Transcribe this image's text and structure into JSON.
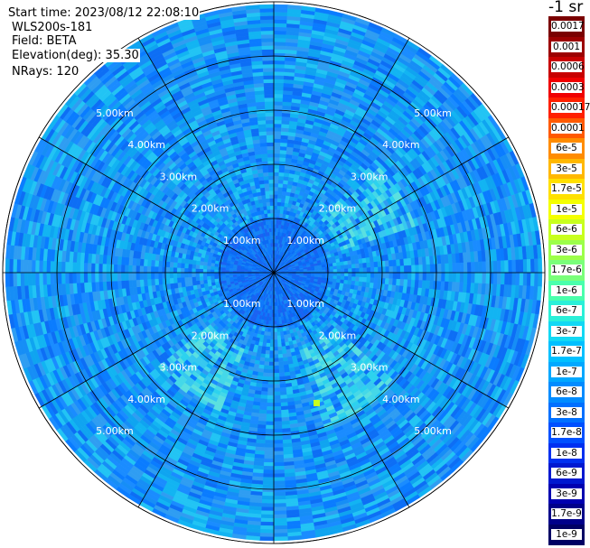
{
  "header": {
    "start_time": "Start time: 2023/08/12 22:08:10",
    "instrument": "WLS200s-181",
    "field": "Field: BETA",
    "elevation": "Elevation(deg): 35.30",
    "nrays": "NRays: 120"
  },
  "colorbar": {
    "unit_title": "-1 sr",
    "labels": [
      "0.0017",
      "0.001",
      "0.0006",
      "0.0003",
      "0.00017",
      "0.0001",
      "6e-5",
      "3e-5",
      "1.7e-5",
      "1e-5",
      "6e-6",
      "3e-6",
      "1.7e-6",
      "1e-6",
      "6e-7",
      "3e-7",
      "1.7e-7",
      "1e-7",
      "6e-8",
      "3e-8",
      "1.7e-8",
      "1e-8",
      "6e-9",
      "3e-9",
      "1.7e-9",
      "1e-9"
    ],
    "colors": [
      "#7a0000",
      "#9c0000",
      "#c80000",
      "#f00000",
      "#ff2000",
      "#ff5a00",
      "#ff8c00",
      "#ffb800",
      "#ffe000",
      "#f4ff00",
      "#c8ff1e",
      "#9cff4a",
      "#7aff7a",
      "#4affac",
      "#2af0d8",
      "#12d8f4",
      "#00c0ff",
      "#00a8ff",
      "#008cff",
      "#0070ff",
      "#0050ff",
      "#0030f0",
      "#0018d0",
      "#0000b0",
      "#00008a",
      "#000064"
    ]
  },
  "chart_data": {
    "type": "heatmap",
    "projection": "polar",
    "field": "BETA",
    "n_rays": 120,
    "range_rings_km": [
      1,
      2,
      3,
      4,
      5
    ],
    "max_range_km": 5.0,
    "ring_labels": [
      "1.00km",
      "2.00km",
      "3.00km",
      "4.00km",
      "5.00km"
    ],
    "spoke_angles_deg": [
      0,
      30,
      60,
      90,
      120,
      150,
      180,
      210,
      240,
      270,
      300,
      330
    ],
    "dominant_value_range": [
      "3e-8",
      "1.7e-7"
    ],
    "near_field_value": "1e-8",
    "grid": true
  }
}
